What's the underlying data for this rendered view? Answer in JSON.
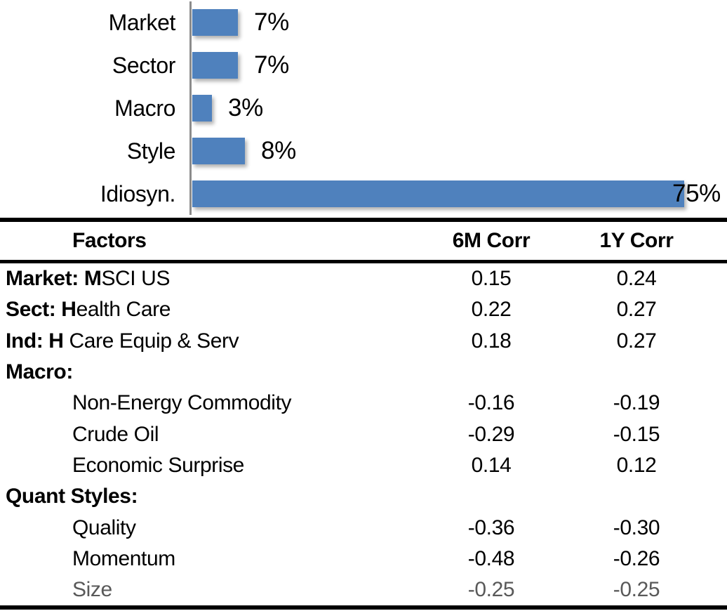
{
  "chart_data": {
    "type": "bar",
    "orientation": "horizontal",
    "title": "",
    "categories": [
      "Market",
      "Sector",
      "Macro",
      "Style",
      "Idiosyn."
    ],
    "values": [
      7,
      7,
      3,
      8,
      75
    ],
    "value_labels": [
      "7%",
      "7%",
      "3%",
      "8%",
      "75%"
    ],
    "xlabel": "",
    "ylabel": "",
    "xlim": [
      0,
      80
    ],
    "grid": false,
    "legend": false,
    "bar_color": "#4f81bd",
    "axis_color": "#8c8c8c",
    "label_color": "#000000"
  },
  "table": {
    "columns": [
      "Factors",
      "6M Corr",
      "1Y Corr"
    ],
    "rows": [
      {
        "label_bold": "Market: M",
        "label_rest": "SCI US",
        "indent": false,
        "corr_6m": "0.15",
        "corr_1y": "0.24",
        "muted": false
      },
      {
        "label_bold": "Sect: H",
        "label_rest": "ealth Care",
        "indent": false,
        "corr_6m": "0.22",
        "corr_1y": "0.27",
        "muted": false
      },
      {
        "label_bold": "Ind: H",
        "label_rest": " Care Equip & Serv",
        "indent": false,
        "corr_6m": "0.18",
        "corr_1y": "0.27",
        "muted": false
      },
      {
        "label_bold": "Macro:",
        "label_rest": "",
        "indent": false,
        "corr_6m": "",
        "corr_1y": "",
        "muted": false
      },
      {
        "label_bold": "",
        "label_rest": "Non-Energy Commodity",
        "indent": true,
        "corr_6m": "-0.16",
        "corr_1y": "-0.19",
        "muted": false
      },
      {
        "label_bold": "",
        "label_rest": "Crude Oil",
        "indent": true,
        "corr_6m": "-0.29",
        "corr_1y": "-0.15",
        "muted": false
      },
      {
        "label_bold": "",
        "label_rest": "Economic Surprise",
        "indent": true,
        "corr_6m": "0.14",
        "corr_1y": "0.12",
        "muted": false
      },
      {
        "label_bold": "Quant Styles:",
        "label_rest": "",
        "indent": false,
        "corr_6m": "",
        "corr_1y": "",
        "muted": false
      },
      {
        "label_bold": "",
        "label_rest": "Quality",
        "indent": true,
        "corr_6m": "-0.36",
        "corr_1y": "-0.30",
        "muted": false
      },
      {
        "label_bold": "",
        "label_rest": "Momentum",
        "indent": true,
        "corr_6m": "-0.48",
        "corr_1y": "-0.26",
        "muted": false
      },
      {
        "label_bold": "",
        "label_rest": "Size",
        "indent": true,
        "corr_6m": "-0.25",
        "corr_1y": "-0.25",
        "muted": true
      }
    ]
  }
}
